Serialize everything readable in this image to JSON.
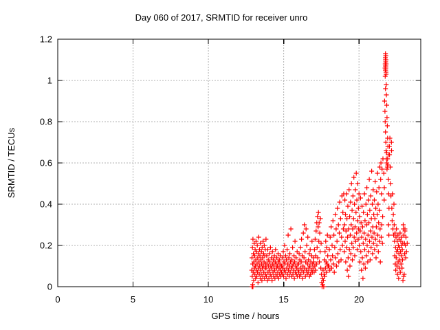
{
  "window": {
    "background": "#ffffff"
  },
  "chart_data": {
    "type": "scatter",
    "title": "Day 060 of 2017, SRMTID for receiver unro",
    "xlabel": "GPS time / hours",
    "ylabel": "SRMTID / TECUs",
    "xlim": [
      0,
      24.1
    ],
    "ylim": [
      0,
      1.2
    ],
    "x_ticks": {
      "values": [
        0,
        5,
        10,
        15,
        20
      ],
      "labels": [
        "0",
        "5",
        "10",
        "15",
        "20"
      ]
    },
    "y_ticks": {
      "values": [
        0,
        0.2,
        0.4,
        0.6,
        0.8,
        1,
        1.2
      ],
      "labels": [
        "0",
        "0.2",
        "0.4",
        "0.6",
        "0.8",
        "1",
        "1.2"
      ]
    },
    "grid": {
      "show": true,
      "color": "#b0b0b0",
      "dash": [
        2,
        2
      ]
    },
    "legend": "none",
    "border_color": "#000000",
    "text_color": "#000000",
    "series": [
      {
        "name": "SRMTID",
        "marker": "plus",
        "marker_size": 7,
        "color": "#ff0000",
        "point_runs": [
          {
            "x0": 12.88,
            "dx": 0.016,
            "y": [
              0.08,
              0.14,
              0.05,
              0.19,
              0.11,
              0.23,
              0.07,
              0.16,
              0.03,
              0.12,
              0.21,
              0.09,
              0.15,
              0.06,
              0.18,
              0.1,
              0.04,
              0.13,
              0.22,
              0.08,
              0.17,
              0.05,
              0.11,
              0.2,
              0.07,
              0.14,
              0.02,
              0.16,
              0.09,
              0.24,
              0.12,
              0.06,
              0.18,
              0.1,
              0.15,
              0.04,
              0.21,
              0.08,
              0.13,
              0.06,
              0.17,
              0.11,
              0.03,
              0.19,
              0.09,
              0.14,
              0.05,
              0.22,
              0.1,
              0.16,
              0.07,
              0.12,
              0.2,
              0.04,
              0.15,
              0.09,
              0.18,
              0.06,
              0.11,
              0.23
            ]
          },
          {
            "x0": 13.83,
            "dx": 0.021,
            "y": [
              0.09,
              0.05,
              0.15,
              0.11,
              0.03,
              0.18,
              0.07,
              0.13,
              0.1,
              0.04,
              0.16,
              0.08,
              0.12,
              0.06,
              0.19,
              0.1,
              0.05,
              0.14,
              0.09,
              0.03,
              0.17,
              0.11,
              0.07,
              0.13,
              0.05,
              0.1,
              0.15,
              0.08,
              0.04,
              0.12,
              0.18,
              0.06,
              0.11,
              0.09,
              0.14,
              0.05,
              0.1,
              0.07,
              0.16,
              0.12,
              0.04,
              0.09,
              0.13,
              0.06,
              0.11,
              0.08,
              0.15,
              0.05,
              0.1,
              0.07
            ]
          },
          {
            "x0": 14.88,
            "dx": 0.023,
            "y": [
              0.1,
              0.06,
              0.14,
              0.09,
              0.17,
              0.05,
              0.12,
              0.08,
              0.2,
              0.11,
              0.07,
              0.15,
              0.04,
              0.13,
              0.09,
              0.18,
              0.06,
              0.11,
              0.25,
              0.08,
              0.14,
              0.05,
              0.1,
              0.16,
              0.07,
              0.12,
              0.28,
              0.09,
              0.05,
              0.13,
              0.1,
              0.19,
              0.06,
              0.11,
              0.08,
              0.15,
              0.04,
              0.12,
              0.22,
              0.07,
              0.1,
              0.14,
              0.06,
              0.09,
              0.17,
              0.05,
              0.11,
              0.08
            ]
          },
          {
            "x0": 15.98,
            "dx": 0.023,
            "y": [
              0.11,
              0.07,
              0.16,
              0.05,
              0.13,
              0.09,
              0.19,
              0.06,
              0.12,
              0.23,
              0.08,
              0.15,
              0.04,
              0.1,
              0.26,
              0.07,
              0.14,
              0.3,
              0.09,
              0.17,
              0.05,
              0.12,
              0.28,
              0.08,
              0.2,
              0.06,
              0.11,
              0.24,
              0.07,
              0.13,
              0.09,
              0.16,
              0.05,
              0.1,
              0.18,
              0.06,
              0.12,
              0.08,
              0.15,
              0.22,
              0.07,
              0.11,
              0.09,
              0.14
            ]
          },
          {
            "x0": 17.0,
            "dx": 0.022,
            "y": [
              0.12,
              0.07,
              0.18,
              0.1,
              0.23,
              0.08,
              0.15,
              0.27,
              0.11,
              0.31,
              0.19,
              0.34,
              0.14,
              0.29,
              0.36,
              0.22,
              0.31,
              0.12,
              0.26,
              0.17,
              0.33,
              0.09,
              0.21,
              0.06,
              0.02,
              0.0,
              0.04,
              0.01,
              0.08,
              0.03,
              0.0,
              0.06,
              0.13,
              0.05,
              0.17,
              0.09,
              0.22,
              0.12,
              0.07,
              0.19,
              0.11,
              0.25,
              0.15,
              0.1
            ]
          },
          {
            "x0": 18.0,
            "dx": 0.03,
            "y": [
              0.1,
              0.18,
              0.08,
              0.24,
              0.13,
              0.29,
              0.09,
              0.2,
              0.15,
              0.32,
              0.11,
              0.25,
              0.07,
              0.19,
              0.35,
              0.14,
              0.28,
              0.1,
              0.22,
              0.38,
              0.16,
              0.3,
              0.12,
              0.26,
              0.41,
              0.18,
              0.33,
              0.13,
              0.24,
              0.44,
              0.2,
              0.36,
              0.28,
              0.45
            ]
          },
          {
            "x0": 19.02,
            "dx": 0.02,
            "y": [
              0.17,
              0.3,
              0.42,
              0.22,
              0.35,
              0.12,
              0.27,
              0.45,
              0.19,
              0.33,
              0.08,
              0.24,
              0.39,
              0.14,
              0.05,
              0.28,
              0.47,
              0.18,
              0.34,
              0.1,
              0.25,
              0.41,
              0.16,
              0.3,
              0.5,
              0.21,
              0.37,
              0.13,
              0.28,
              0.44,
              0.19,
              0.33,
              0.53,
              0.24,
              0.4,
              0.15,
              0.29,
              0.47,
              0.22,
              0.36,
              0.55,
              0.26,
              0.42,
              0.18,
              0.32,
              0.5,
              0.23,
              0.38,
              0.28,
              0.45
            ]
          },
          {
            "x0": 20.02,
            "dx": 0.02,
            "y": [
              0.2,
              0.34,
              0.12,
              0.27,
              0.43,
              0.17,
              0.31,
              0.08,
              0.24,
              0.39,
              0.14,
              0.29,
              0.04,
              0.21,
              0.36,
              0.11,
              0.26,
              0.45,
              0.18,
              0.32,
              0.09,
              0.23,
              0.4,
              0.15,
              0.3,
              0.48,
              0.2,
              0.35,
              0.12,
              0.25,
              0.42,
              0.17,
              0.31,
              0.52,
              0.22,
              0.37,
              0.13,
              0.27,
              0.44,
              0.19,
              0.33,
              0.56,
              0.24,
              0.4,
              0.16,
              0.29,
              0.47,
              0.21,
              0.35
            ]
          },
          {
            "x0": 21.0,
            "dx": 0.019,
            "y": [
              0.26,
              0.42,
              0.18,
              0.33,
              0.51,
              0.23,
              0.38,
              0.14,
              0.29,
              0.46,
              0.2,
              0.35,
              0.55,
              0.25,
              0.4,
              0.17,
              0.31,
              0.48,
              0.22,
              0.37,
              0.58,
              0.28,
              0.12,
              0.52,
              0.6,
              0.24,
              0.45,
              0.3,
              0.57,
              0.21,
              0.34,
              0.62
            ]
          },
          {
            "x0": 22.36,
            "dx": 0.016,
            "y": [
              0.22,
              0.15,
              0.26,
              0.11,
              0.19,
              0.08,
              0.24,
              0.14,
              0.28,
              0.17,
              0.1,
              0.22,
              0.06,
              0.18,
              0.25,
              0.12,
              0.2,
              0.04,
              0.16,
              0.23,
              0.09,
              0.19,
              0.13,
              0.26,
              0.07,
              0.17,
              0.22,
              0.11,
              0.2,
              0.15,
              0.24,
              0.09,
              0.18,
              0.13,
              0.21,
              0.03,
              0.3,
              0.28,
              0.05,
              0.25,
              0.06,
              0.21,
              0.16,
              0.27
            ]
          }
        ],
        "extra_points": [
          [
            21.74,
            1.08
          ],
          [
            21.76,
            1.1
          ],
          [
            21.75,
            1.05
          ],
          [
            21.77,
            1.12
          ],
          [
            21.78,
            1.07
          ],
          [
            21.76,
            1.13
          ],
          [
            21.79,
            1.04
          ],
          [
            21.77,
            1.09
          ],
          [
            21.75,
            1.11
          ],
          [
            21.78,
            1.06
          ],
          [
            21.8,
            1.08
          ],
          [
            21.74,
            1.02
          ],
          [
            21.79,
            1.1
          ],
          [
            21.77,
            1.05
          ],
          [
            21.75,
            1.07
          ],
          [
            21.78,
            1.12
          ],
          [
            21.8,
            1.03
          ],
          [
            21.73,
            1.06
          ],
          [
            21.81,
            0.98
          ],
          [
            21.76,
            0.96
          ],
          [
            21.82,
            0.93
          ],
          [
            21.7,
            0.9
          ],
          [
            21.84,
            0.88
          ],
          [
            21.72,
            0.85
          ],
          [
            21.86,
            0.82
          ],
          [
            21.74,
            0.8
          ],
          [
            21.88,
            0.78
          ],
          [
            21.76,
            0.75
          ],
          [
            21.9,
            0.72
          ],
          [
            21.78,
            0.7
          ],
          [
            21.92,
            0.68
          ],
          [
            21.8,
            0.66
          ],
          [
            21.94,
            0.64
          ],
          [
            21.82,
            0.62
          ],
          [
            21.85,
            0.6
          ],
          [
            21.88,
            0.58
          ],
          [
            21.9,
            0.62
          ],
          [
            21.86,
            0.57
          ],
          [
            21.83,
            0.65
          ],
          [
            21.91,
            0.59
          ],
          [
            21.65,
            0.55
          ],
          [
            21.68,
            0.48
          ],
          [
            21.95,
            0.52
          ],
          [
            21.97,
            0.45
          ],
          [
            21.99,
            0.38
          ],
          [
            21.67,
            0.42
          ],
          [
            21.96,
            0.3
          ],
          [
            21.98,
            0.25
          ],
          [
            22.02,
            0.68
          ],
          [
            22.05,
            0.72
          ],
          [
            22.03,
            0.64
          ],
          [
            22.08,
            0.58
          ],
          [
            22.1,
            0.5
          ],
          [
            22.12,
            0.44
          ],
          [
            22.15,
            0.7
          ],
          [
            22.16,
            0.66
          ],
          [
            22.18,
            0.38
          ],
          [
            22.2,
            0.32
          ],
          [
            22.22,
            0.45
          ],
          [
            22.25,
            0.28
          ],
          [
            22.28,
            0.35
          ],
          [
            22.3,
            0.25
          ],
          [
            22.32,
            0.4
          ],
          [
            22.34,
            0.3
          ],
          [
            23.08,
            0.2
          ],
          [
            23.12,
            0.24
          ],
          [
            23.15,
            0.17
          ],
          [
            23.2,
            0.21
          ],
          [
            23.1,
            0.14
          ],
          [
            23.05,
            0.28
          ],
          [
            12.9,
            0.0
          ],
          [
            12.92,
            0.0
          ],
          [
            12.94,
            0.01
          ],
          [
            12.96,
            0.0
          ]
        ]
      }
    ]
  }
}
